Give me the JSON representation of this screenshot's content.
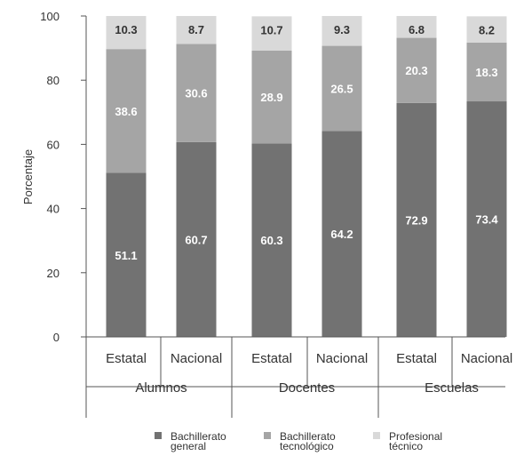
{
  "chart_data": {
    "type": "bar",
    "stacked": true,
    "ylabel": "Porcentaje",
    "ylim": [
      0,
      100
    ],
    "yticks": [
      "0",
      "20",
      "40",
      "60",
      "80",
      "100"
    ],
    "groups": [
      "Alumnos",
      "Docentes",
      "Escuelas"
    ],
    "categories": [
      "Estatal",
      "Nacional",
      "Estatal",
      "Nacional",
      "Estatal",
      "Nacional"
    ],
    "series": [
      {
        "name": "Bachillerato general",
        "color": "#727272",
        "label_color": "#ffffff",
        "values": [
          51.1,
          60.7,
          60.3,
          64.2,
          72.9,
          73.4
        ],
        "labels": [
          "51.1",
          "60.7",
          "60.3",
          "64.2",
          "72.9",
          "73.4"
        ]
      },
      {
        "name": "Bachillerato tecnológico",
        "color": "#a5a5a5",
        "label_color": "#ffffff",
        "values": [
          38.6,
          30.6,
          28.9,
          26.5,
          20.3,
          18.3
        ],
        "labels": [
          "38.6",
          "30.6",
          "28.9",
          "26.5",
          "20.3",
          "18.3"
        ]
      },
      {
        "name": "Profesional técnico",
        "color": "#d9d9d9",
        "label_color": "#333333",
        "values": [
          10.3,
          8.7,
          10.7,
          9.3,
          6.8,
          8.2
        ],
        "labels": [
          "10.3",
          "8.7",
          "10.7",
          "9.3",
          "6.8",
          "8.2"
        ]
      }
    ],
    "legend": {
      "position": "bottom",
      "entries": [
        {
          "line1": "Bachillerato",
          "line2": "general"
        },
        {
          "line1": "Bachillerato",
          "line2": "tecnológico"
        },
        {
          "line1": "Profesional",
          "line2": "técnico"
        }
      ]
    },
    "grid": false
  }
}
